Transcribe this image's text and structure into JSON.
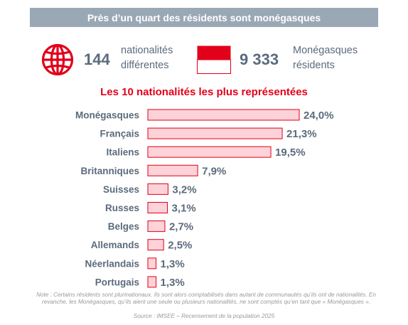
{
  "banner": {
    "title": "Près d’un quart des résidents sont monégasques"
  },
  "stats": {
    "nationalities": {
      "icon": "globe-icon",
      "value": "144",
      "label_line1": "nationalités",
      "label_line2": "différentes"
    },
    "monegasques": {
      "icon": "monaco-flag-icon",
      "value": "9 333",
      "label_line1": "Monégasques",
      "label_line2": "résidents"
    }
  },
  "section_title": "Les 10 nationalités les plus représentées",
  "colors": {
    "accent_red": "#e2001a",
    "bar_fill": "#fdd2d8",
    "bar_stroke": "#e2001a",
    "text_slate": "#5b6b7c",
    "banner_bg": "#9aa8b6"
  },
  "chart_data": {
    "type": "bar",
    "orientation": "horizontal",
    "title": "Les 10 nationalités les plus représentées",
    "categories": [
      "Monégasques",
      "Français",
      "Italiens",
      "Britanniques",
      "Suisses",
      "Russes",
      "Belges",
      "Allemands",
      "Néerlandais",
      "Portugais"
    ],
    "values": [
      24.0,
      21.3,
      19.5,
      7.9,
      3.2,
      3.1,
      2.7,
      2.5,
      1.3,
      1.3
    ],
    "value_labels": [
      "24,0%",
      "21,3%",
      "19,5%",
      "7,9%",
      "3,2%",
      "3,1%",
      "2,7%",
      "2,5%",
      "1,3%",
      "1,3%"
    ],
    "unit": "%",
    "xlim": [
      0,
      24
    ],
    "grid": false,
    "legend": "none"
  },
  "footnote": {
    "note": "Note : Certains résidents sont plurinationaux. Ils sont alors comptabilisés dans autant de communautés qu’ils ont de nationalités. En revanche, les Monégasques, qu’ils aient une seule ou plusieurs nationalités, ne sont comptés qu’en tant que « Monégasques ».",
    "source": "Source : IMSEE – Recensement de la population 2025"
  }
}
